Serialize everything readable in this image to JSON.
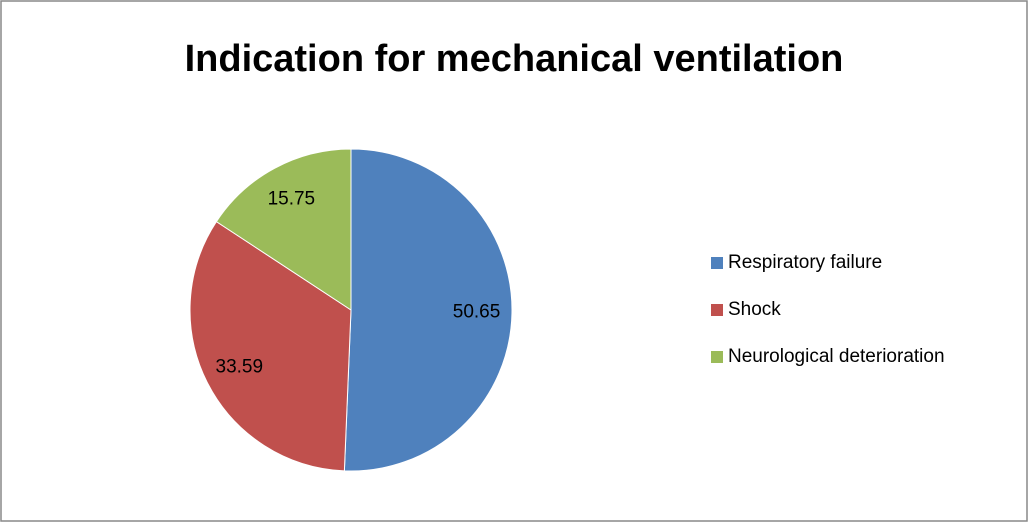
{
  "chart_data": {
    "type": "pie",
    "title": "Indication for mechanical ventilation",
    "categories": [
      "Respiratory failure",
      "Shock",
      "Neurological deterioration"
    ],
    "values": [
      50.65,
      33.59,
      15.75
    ],
    "colors": [
      "#4f81bd",
      "#c0504d",
      "#9bbb59"
    ],
    "legend": "right"
  }
}
